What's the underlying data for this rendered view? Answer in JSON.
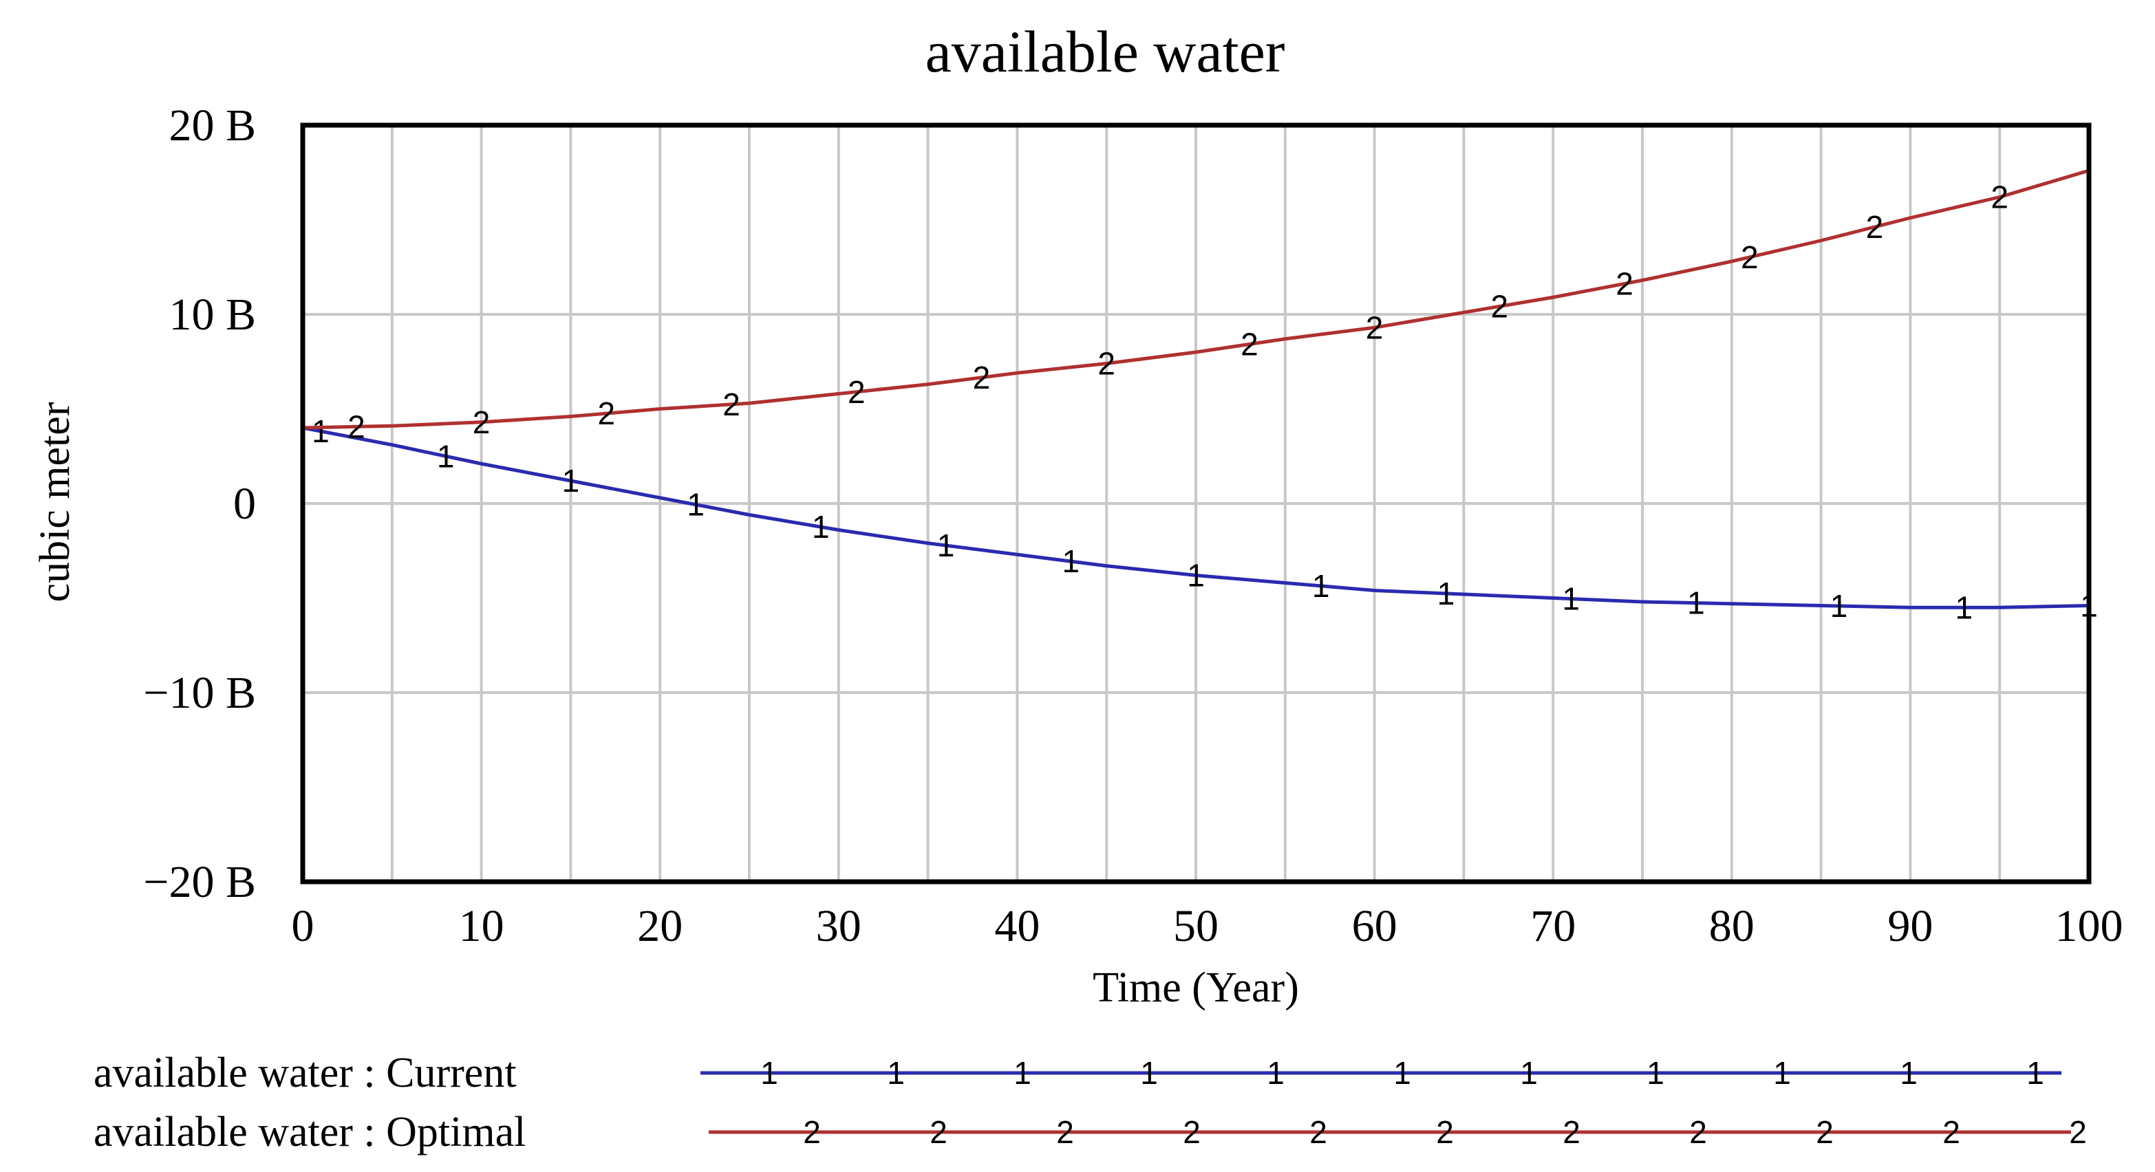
{
  "chart_data": {
    "type": "line",
    "title": "available water",
    "xlabel": "Time (Year)",
    "ylabel": "cubic meter",
    "xlim": [
      0,
      100
    ],
    "ylim": [
      -20,
      20
    ],
    "x_ticks": [
      0,
      10,
      20,
      30,
      40,
      50,
      60,
      70,
      80,
      90,
      100
    ],
    "x_tick_labels": [
      "0",
      "10",
      "20",
      "30",
      "40",
      "50",
      "60",
      "70",
      "80",
      "90",
      "100"
    ],
    "y_ticks": [
      20,
      10,
      0,
      -10,
      -20
    ],
    "y_tick_labels": [
      "20 B",
      "10 B",
      "0",
      "−10 B",
      "−20 B"
    ],
    "x_minor_step": 5,
    "grid": true,
    "legend_position": "bottom",
    "series": [
      {
        "name": "available water : Current",
        "marker": "1",
        "color": "#2a2ab0",
        "x": [
          0,
          5,
          10,
          15,
          20,
          25,
          30,
          35,
          40,
          45,
          50,
          55,
          60,
          65,
          70,
          75,
          80,
          85,
          90,
          95,
          100
        ],
        "values": [
          4.0,
          3.1,
          2.1,
          1.2,
          0.3,
          -0.6,
          -1.4,
          -2.1,
          -2.7,
          -3.3,
          -3.8,
          -4.2,
          -4.6,
          -4.8,
          -5.0,
          -5.2,
          -5.3,
          -5.4,
          -5.5,
          -5.5,
          -5.4
        ],
        "marker_x": [
          1,
          8,
          15,
          22,
          29,
          36,
          43,
          50,
          57,
          64,
          71,
          78,
          86,
          93,
          100
        ]
      },
      {
        "name": "available water : Optimal",
        "marker": "2",
        "color": "#b03030",
        "x": [
          0,
          5,
          10,
          15,
          20,
          25,
          30,
          35,
          40,
          45,
          50,
          55,
          60,
          65,
          70,
          75,
          80,
          85,
          90,
          95,
          100
        ],
        "values": [
          4.0,
          4.1,
          4.3,
          4.6,
          5.0,
          5.3,
          5.8,
          6.3,
          6.9,
          7.4,
          8.0,
          8.7,
          9.3,
          10.1,
          10.9,
          11.8,
          12.8,
          13.9,
          15.1,
          16.2,
          17.6
        ],
        "marker_x": [
          3,
          10,
          17,
          24,
          31,
          38,
          45,
          53,
          60,
          67,
          74,
          81,
          88,
          95
        ]
      }
    ]
  }
}
